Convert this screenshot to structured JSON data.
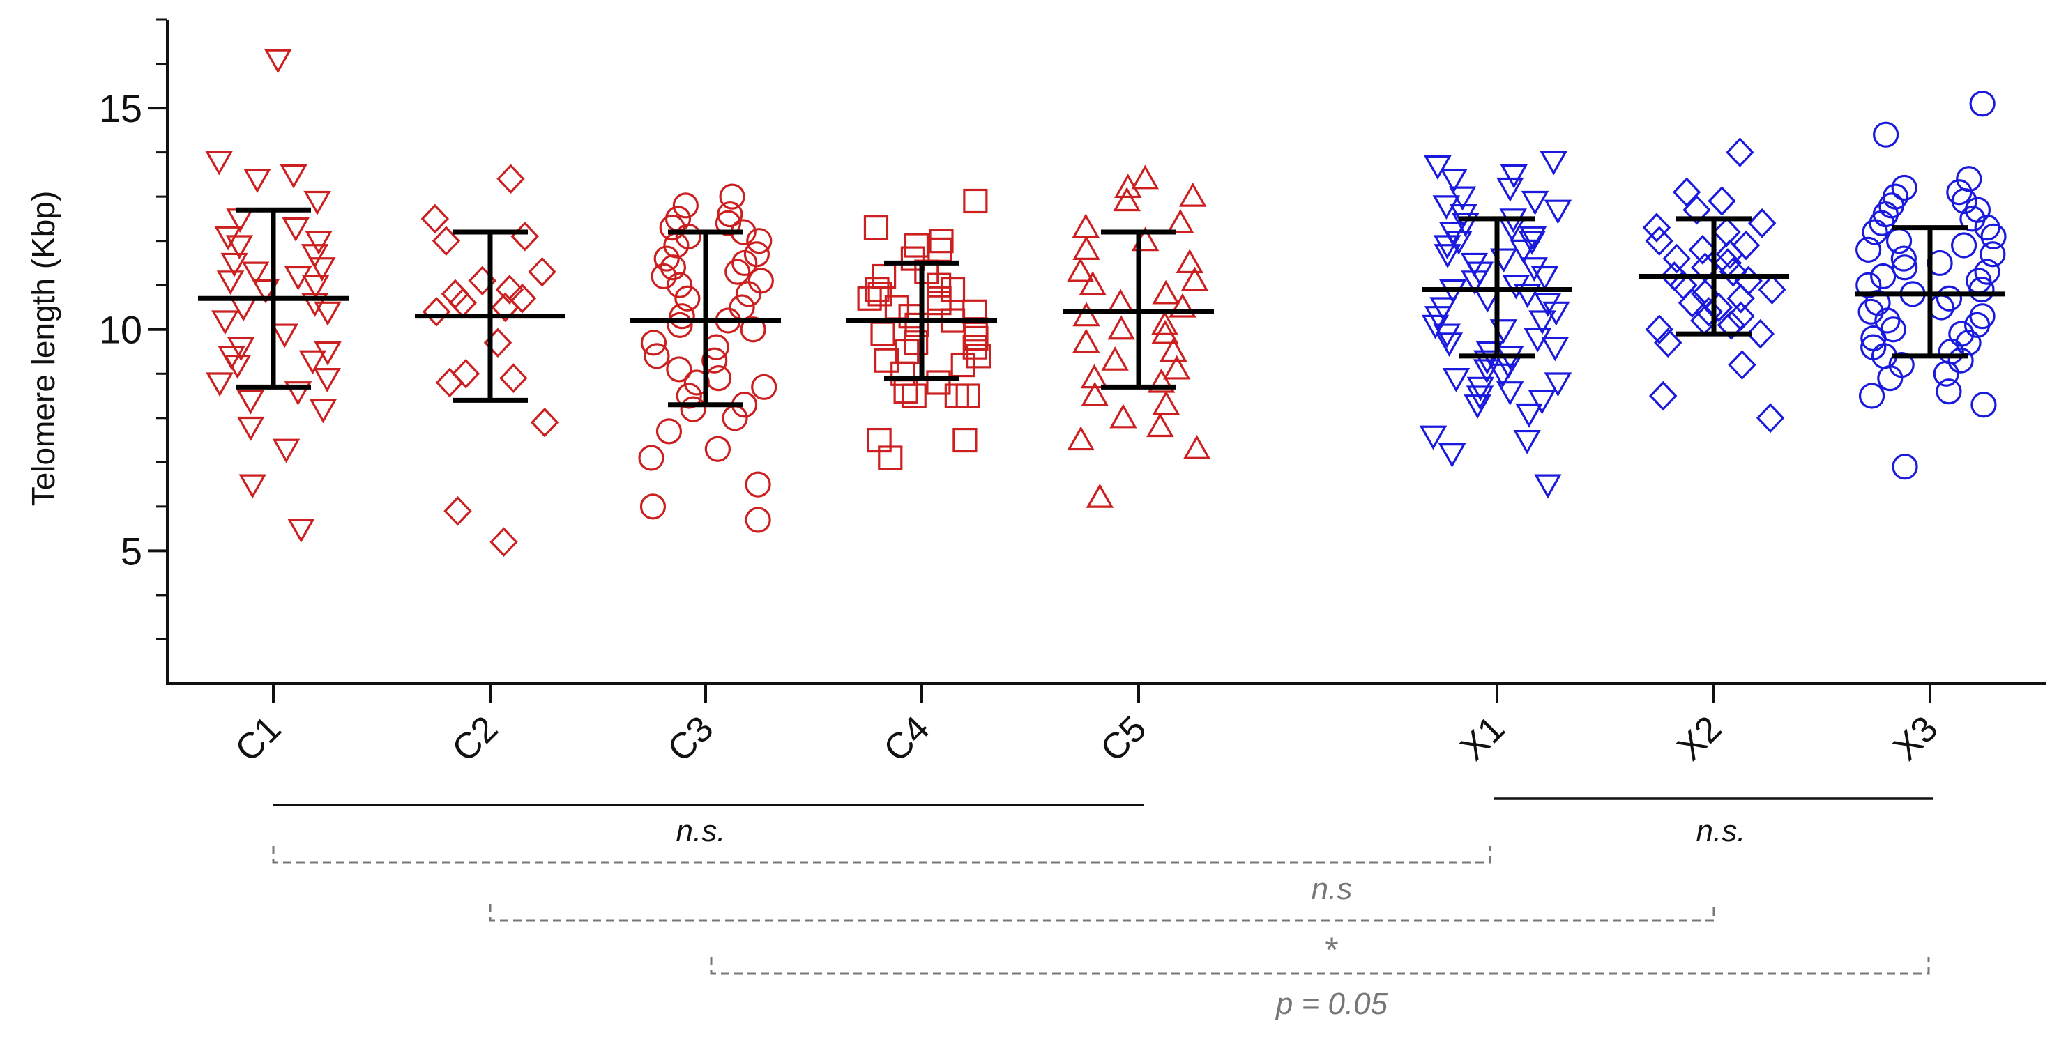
{
  "chart_data": {
    "type": "scatter",
    "ylabel": "Telomere length (Kbp)",
    "ylim": [
      2,
      17
    ],
    "yticks_major": [
      5,
      10,
      15
    ],
    "yticks_minor": [
      3,
      4,
      6,
      7,
      8,
      9,
      11,
      12,
      13,
      14,
      16,
      17
    ],
    "colors": {
      "control": "#cc1f1f",
      "treated": "#1a1adf",
      "summary": "#000000",
      "dashed": "#777777"
    },
    "groups": [
      {
        "name": "C1",
        "marker": "triangle-down",
        "color": "#cc1f1f",
        "mean": 10.7,
        "sd_low": 8.7,
        "sd_high": 12.7,
        "values": [
          16.1,
          13.8,
          13.5,
          13.4,
          12.9,
          12.5,
          12.3,
          12.1,
          12.0,
          11.9,
          11.7,
          11.5,
          11.4,
          11.3,
          11.2,
          11.1,
          11.0,
          10.9,
          10.6,
          10.5,
          10.4,
          10.2,
          9.9,
          9.6,
          9.5,
          9.4,
          9.3,
          9.2,
          8.9,
          8.8,
          8.6,
          8.4,
          8.2,
          7.8,
          7.3,
          6.5,
          5.5
        ]
      },
      {
        "name": "C2",
        "marker": "diamond",
        "color": "#cc1f1f",
        "mean": 10.3,
        "sd_low": 8.4,
        "sd_high": 12.2,
        "values": [
          13.4,
          12.5,
          12.1,
          12.0,
          11.3,
          11.1,
          10.9,
          10.8,
          10.7,
          10.6,
          10.5,
          10.4,
          9.7,
          9.0,
          8.9,
          8.8,
          7.9,
          5.9,
          5.2
        ]
      },
      {
        "name": "C3",
        "marker": "circle",
        "color": "#cc1f1f",
        "mean": 10.2,
        "sd_low": 8.3,
        "sd_high": 12.2,
        "values": [
          13.0,
          12.8,
          12.6,
          12.5,
          12.4,
          12.3,
          12.2,
          12.1,
          12.0,
          11.9,
          11.7,
          11.6,
          11.5,
          11.4,
          11.3,
          11.2,
          11.1,
          11.0,
          10.8,
          10.7,
          10.5,
          10.3,
          10.2,
          10.1,
          10.0,
          9.7,
          9.6,
          9.4,
          9.3,
          9.1,
          8.9,
          8.8,
          8.7,
          8.5,
          8.3,
          8.2,
          8.0,
          7.7,
          7.3,
          7.1,
          6.5,
          6.0,
          5.7
        ]
      },
      {
        "name": "C4",
        "marker": "square",
        "color": "#cc1f1f",
        "mean": 10.2,
        "sd_low": 8.9,
        "sd_high": 11.5,
        "values": [
          12.9,
          12.3,
          12.0,
          11.9,
          11.8,
          11.6,
          11.3,
          11.2,
          11.0,
          10.9,
          10.9,
          10.8,
          10.7,
          10.7,
          10.6,
          10.5,
          10.4,
          10.3,
          10.2,
          10.1,
          10.0,
          9.9,
          9.8,
          9.7,
          9.6,
          9.5,
          9.4,
          9.3,
          9.2,
          9.0,
          8.8,
          8.6,
          8.5,
          8.5,
          8.5,
          7.5,
          7.5,
          7.1
        ]
      },
      {
        "name": "C5",
        "marker": "triangle-up",
        "color": "#cc1f1f",
        "mean": 10.4,
        "sd_low": 8.7,
        "sd_high": 12.2,
        "values": [
          13.4,
          13.2,
          13.0,
          12.9,
          12.4,
          12.3,
          12.0,
          11.8,
          11.5,
          11.3,
          11.1,
          11.0,
          10.8,
          10.6,
          10.5,
          10.3,
          10.1,
          10.0,
          9.9,
          9.7,
          9.5,
          9.3,
          9.1,
          8.9,
          8.8,
          8.5,
          8.3,
          8.0,
          7.8,
          7.5,
          7.3,
          6.2
        ]
      },
      {
        "name": "X1",
        "marker": "triangle-down",
        "color": "#1a1adf",
        "mean": 10.9,
        "sd_low": 9.4,
        "sd_high": 12.5,
        "values": [
          13.8,
          13.7,
          13.5,
          13.4,
          13.2,
          13.0,
          12.9,
          12.8,
          12.7,
          12.6,
          12.5,
          12.4,
          12.3,
          12.2,
          12.1,
          12.0,
          12.0,
          11.9,
          11.8,
          11.7,
          11.6,
          11.5,
          11.4,
          11.3,
          11.2,
          11.1,
          11.0,
          10.9,
          10.8,
          10.7,
          10.6,
          10.5,
          10.4,
          10.3,
          10.2,
          10.1,
          10.0,
          9.9,
          9.8,
          9.7,
          9.6,
          9.5,
          9.4,
          9.3,
          9.2,
          9.1,
          9.0,
          8.9,
          8.8,
          8.7,
          8.6,
          8.5,
          8.4,
          8.3,
          8.1,
          7.6,
          7.5,
          7.2,
          6.5
        ]
      },
      {
        "name": "X2",
        "marker": "diamond",
        "color": "#1a1adf",
        "mean": 11.2,
        "sd_low": 9.9,
        "sd_high": 12.5,
        "values": [
          14.0,
          13.1,
          12.9,
          12.7,
          12.4,
          12.3,
          12.2,
          12.0,
          11.9,
          11.8,
          11.7,
          11.6,
          11.5,
          11.4,
          11.3,
          11.2,
          11.1,
          11.0,
          10.9,
          10.8,
          10.7,
          10.6,
          10.5,
          10.4,
          10.3,
          10.2,
          10.1,
          10.0,
          9.9,
          9.7,
          9.2,
          8.5,
          8.0
        ]
      },
      {
        "name": "X3",
        "marker": "circle",
        "color": "#1a1adf",
        "mean": 10.8,
        "sd_low": 9.4,
        "sd_high": 12.3,
        "values": [
          15.1,
          14.4,
          13.4,
          13.2,
          13.1,
          13.0,
          12.9,
          12.8,
          12.7,
          12.6,
          12.5,
          12.4,
          12.3,
          12.2,
          12.1,
          12.0,
          11.9,
          11.8,
          11.7,
          11.6,
          11.5,
          11.4,
          11.3,
          11.2,
          11.1,
          11.0,
          10.9,
          10.8,
          10.7,
          10.6,
          10.5,
          10.4,
          10.3,
          10.2,
          10.1,
          10.0,
          9.9,
          9.8,
          9.7,
          9.6,
          9.5,
          9.4,
          9.3,
          9.2,
          9.0,
          8.9,
          8.6,
          8.5,
          8.3,
          6.9
        ]
      }
    ],
    "comparisons": [
      {
        "from": "C1",
        "to": "C5",
        "style": "solid",
        "label": "n.s."
      },
      {
        "from": "X1",
        "to": "X3",
        "style": "solid",
        "label": "n.s."
      },
      {
        "from": "C1",
        "to": "X1",
        "style": "dashed",
        "label": "n.s"
      },
      {
        "from": "C2",
        "to": "X2",
        "style": "dashed",
        "label": "*"
      },
      {
        "from": "C3",
        "to": "X3",
        "style": "dashed",
        "label": "p = 0.05"
      }
    ]
  }
}
